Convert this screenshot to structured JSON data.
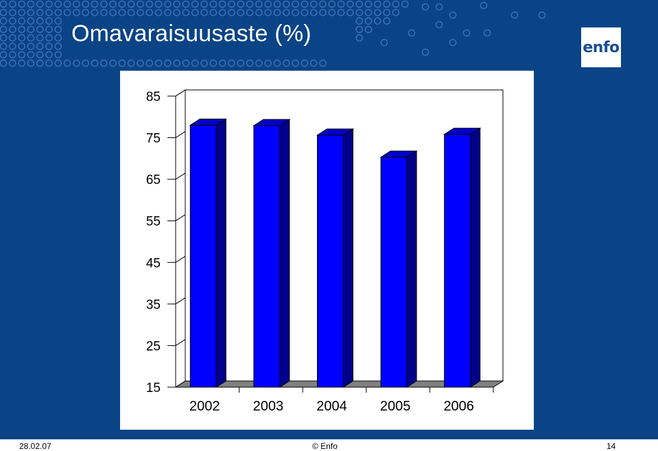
{
  "slide": {
    "title": "Omavaraisuusaste (%)",
    "logo_text": "enfo",
    "background_color": "#0a4487"
  },
  "footer": {
    "date": "28.02.07",
    "copyright": "© Enfo",
    "page": "14"
  },
  "chart_data": {
    "type": "bar",
    "title": "",
    "xlabel": "",
    "ylabel": "",
    "categories": [
      "2002",
      "2003",
      "2004",
      "2005",
      "2006"
    ],
    "values": [
      78,
      77.9,
      75.6,
      70.3,
      75.8
    ],
    "ylim": [
      15,
      85
    ],
    "yticks": [
      15,
      25,
      35,
      45,
      55,
      65,
      75,
      85
    ],
    "grid": false,
    "style": "3d",
    "bar_color": "#0000ff",
    "bar_side_color": "#00008a",
    "bar_top_color": "#0000c8",
    "floor_color": "#808080"
  }
}
